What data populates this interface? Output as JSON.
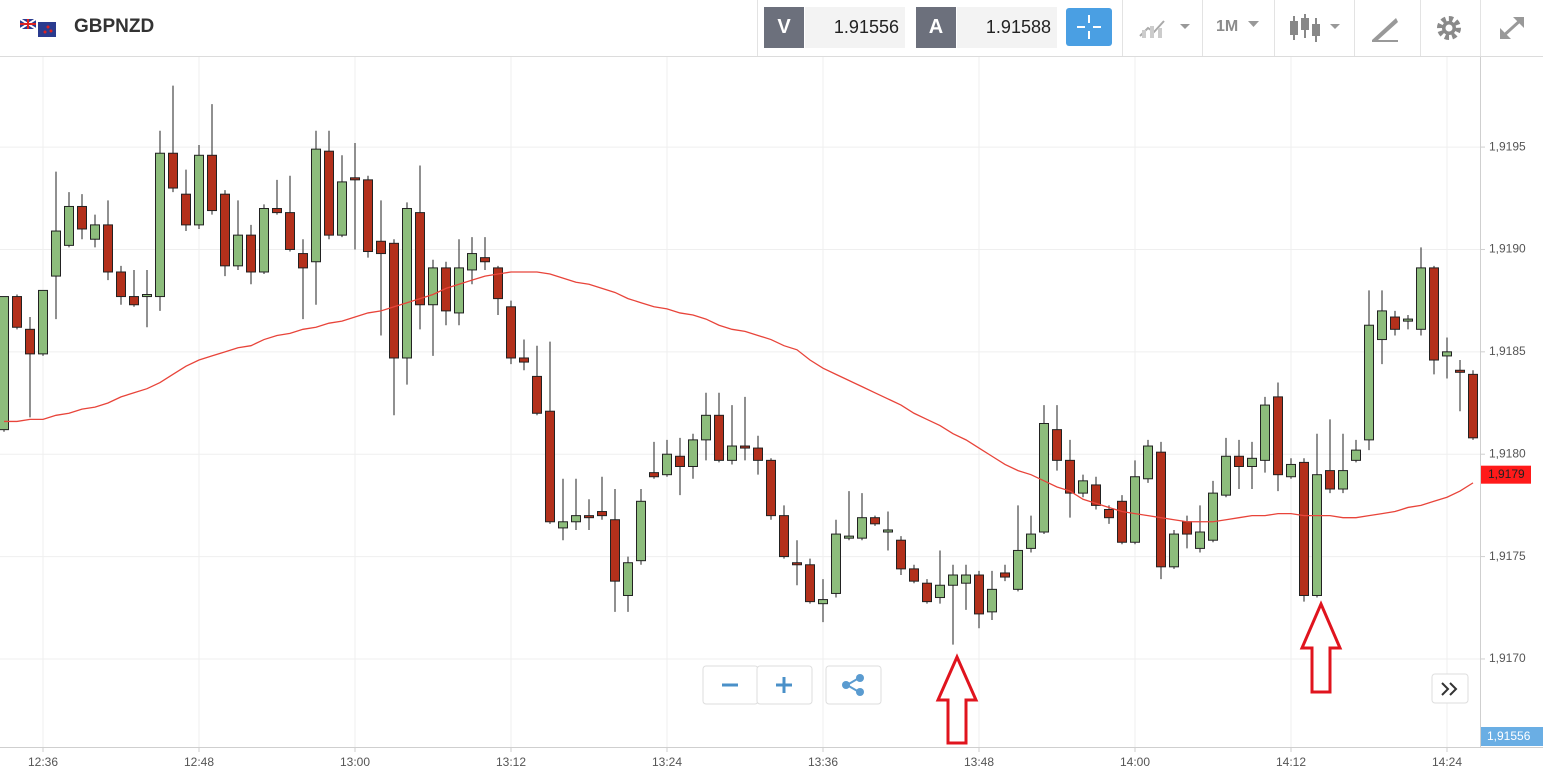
{
  "header": {
    "symbol": "GBPNZD",
    "bid_label": "V",
    "bid": "1.91556",
    "ask_label": "A",
    "ask": "1.91588",
    "timeframe": "1M"
  },
  "chart_data": {
    "type": "candlestick",
    "categories": [
      null,
      null,
      null,
      "12:36",
      null,
      null,
      null,
      null,
      null,
      null,
      null,
      null,
      null,
      null,
      null,
      "12:48",
      null,
      null,
      null,
      null,
      null,
      null,
      null,
      null,
      null,
      null,
      null,
      "13:00",
      null,
      null,
      null,
      null,
      null,
      null,
      null,
      null,
      null,
      null,
      null,
      "13:12",
      null,
      null,
      null,
      null,
      null,
      null,
      null,
      null,
      null,
      null,
      null,
      "13:24",
      null,
      null,
      null,
      null,
      null,
      null,
      null,
      null,
      null,
      null,
      null,
      "13:36",
      null,
      null,
      null,
      null,
      null,
      null,
      null,
      null,
      null,
      null,
      null,
      "13:48",
      null,
      null,
      null,
      null,
      null,
      null,
      null,
      null,
      null,
      null,
      null,
      "14:00",
      null,
      null,
      null,
      null,
      null,
      null,
      null,
      null,
      null,
      null,
      null,
      "14:12",
      null,
      null,
      null,
      null,
      null,
      null,
      null,
      null,
      null,
      null,
      null,
      "14:24",
      null,
      null
    ],
    "open": [
      1.91812,
      1.91877,
      1.91861,
      1.91849,
      1.91887,
      1.91902,
      1.91921,
      1.91905,
      1.91912,
      1.91889,
      1.91877,
      1.91877,
      1.91877,
      1.91947,
      1.91927,
      1.91912,
      1.91946,
      1.91927,
      1.91892,
      1.91907,
      1.91889,
      1.9192,
      1.91918,
      1.91898,
      1.91894,
      1.91948,
      1.91907,
      1.91935,
      1.91934,
      1.91904,
      1.91903,
      1.91847,
      1.91918,
      1.91873,
      1.91891,
      1.91869,
      1.9189,
      1.91896,
      1.91891,
      1.91872,
      1.91847,
      1.91838,
      1.91821,
      1.91764,
      1.91767,
      1.9177,
      1.91772,
      1.91768,
      1.91731,
      1.91748,
      1.91791,
      1.9179,
      1.91799,
      1.91794,
      1.91807,
      1.91819,
      1.91797,
      1.91804,
      1.91803,
      1.91797,
      1.9177,
      1.91747,
      1.91746,
      1.91727,
      1.91732,
      1.91759,
      1.91759,
      1.91769,
      1.91762,
      1.91758,
      1.91744,
      1.91737,
      1.9173,
      1.91736,
      1.91737,
      1.91741,
      1.91723,
      1.91742,
      1.91734,
      1.91754,
      1.91762,
      1.91812,
      1.91797,
      1.91781,
      1.91785,
      1.91773,
      1.91777,
      1.91757,
      1.91788,
      1.91801,
      1.91745,
      1.91767,
      1.91754,
      1.91758,
      1.9178,
      1.91799,
      1.91794,
      1.91797,
      1.91828,
      1.91789,
      1.91796,
      1.91731,
      1.91792,
      1.91783,
      1.91797,
      1.91807,
      1.91856,
      1.91867,
      1.91865,
      1.91861,
      1.91891,
      1.91848,
      1.91841,
      1.91839
    ],
    "high": [
      1.91877,
      1.91878,
      1.91867,
      1.9188,
      1.91938,
      1.91928,
      1.91927,
      1.91917,
      1.91924,
      1.91892,
      1.9189,
      1.9189,
      1.91958,
      1.9198,
      1.91939,
      1.91951,
      1.91971,
      1.91929,
      1.91924,
      1.91912,
      1.91922,
      1.91934,
      1.91936,
      1.91905,
      1.91958,
      1.91958,
      1.91946,
      1.91952,
      1.91936,
      1.91924,
      1.91905,
      1.91923,
      1.91941,
      1.91895,
      1.91894,
      1.91905,
      1.91906,
      1.91906,
      1.91892,
      1.91875,
      1.91856,
      1.91853,
      1.91855,
      1.91788,
      1.91788,
      1.91778,
      1.91789,
      1.91783,
      1.9175,
      1.91783,
      1.91806,
      1.91807,
      1.91808,
      1.9181,
      1.9183,
      1.9183,
      1.91824,
      1.91828,
      1.91809,
      1.91798,
      1.91775,
      1.91758,
      1.91749,
      1.91739,
      1.91768,
      1.91782,
      1.91781,
      1.9177,
      1.91772,
      1.9176,
      1.91746,
      1.91739,
      1.91753,
      1.91746,
      1.91746,
      1.91743,
      1.91743,
      1.91746,
      1.91775,
      1.9177,
      1.91824,
      1.91824,
      1.91807,
      1.9179,
      1.91789,
      1.91775,
      1.9178,
      1.91797,
      1.91807,
      1.91806,
      1.91763,
      1.9177,
      1.91775,
      1.91787,
      1.91808,
      1.91807,
      1.91806,
      1.91828,
      1.91835,
      1.91798,
      1.91798,
      1.9181,
      1.91817,
      1.9181,
      1.91807,
      1.9188,
      1.9188,
      1.9187,
      1.91868,
      1.91901,
      1.91892,
      1.91857,
      1.91846,
      1.91841
    ],
    "low": [
      1.91811,
      1.91861,
      1.91818,
      1.91848,
      1.91866,
      1.91901,
      1.91905,
      1.91901,
      1.91885,
      1.91873,
      1.91872,
      1.91862,
      1.9187,
      1.91928,
      1.91909,
      1.9191,
      1.91917,
      1.91887,
      1.9189,
      1.91883,
      1.91888,
      1.91917,
      1.91899,
      1.91866,
      1.91873,
      1.91905,
      1.91906,
      1.919,
      1.91896,
      1.91858,
      1.91819,
      1.91834,
      1.91861,
      1.91848,
      1.91863,
      1.91863,
      1.91883,
      1.9189,
      1.91868,
      1.91844,
      1.91841,
      1.91819,
      1.91766,
      1.91758,
      1.91763,
      1.91763,
      1.91768,
      1.91723,
      1.91723,
      1.91746,
      1.91788,
      1.91789,
      1.9178,
      1.91788,
      1.91797,
      1.91796,
      1.91795,
      1.91797,
      1.9179,
      1.91768,
      1.91749,
      1.91736,
      1.91727,
      1.91718,
      1.9173,
      1.91758,
      1.91758,
      1.91765,
      1.91753,
      1.91741,
      1.91737,
      1.91727,
      1.91727,
      1.91707,
      1.91724,
      1.91715,
      1.91719,
      1.91738,
      1.91733,
      1.91752,
      1.91761,
      1.91792,
      1.91769,
      1.91779,
      1.91773,
      1.91766,
      1.91756,
      1.91756,
      1.91786,
      1.91739,
      1.91744,
      1.91754,
      1.91752,
      1.91757,
      1.91779,
      1.91783,
      1.91783,
      1.91791,
      1.91782,
      1.91788,
      1.91728,
      1.9173,
      1.91781,
      1.91781,
      1.91796,
      1.91802,
      1.91844,
      1.91858,
      1.91861,
      1.91858,
      1.91839,
      1.91837,
      1.91821,
      1.91807
    ],
    "close": [
      1.91877,
      1.91862,
      1.91849,
      1.9188,
      1.91909,
      1.91921,
      1.9191,
      1.91912,
      1.91889,
      1.91877,
      1.91873,
      1.91878,
      1.91947,
      1.9193,
      1.91912,
      1.91946,
      1.91919,
      1.91892,
      1.91907,
      1.91889,
      1.9192,
      1.91918,
      1.919,
      1.91891,
      1.91949,
      1.91907,
      1.91933,
      1.91934,
      1.91899,
      1.91898,
      1.91847,
      1.9192,
      1.91873,
      1.91891,
      1.9187,
      1.91891,
      1.91898,
      1.91894,
      1.91876,
      1.91847,
      1.91845,
      1.9182,
      1.91767,
      1.91767,
      1.9177,
      1.91769,
      1.9177,
      1.91738,
      1.91747,
      1.91777,
      1.91789,
      1.918,
      1.91794,
      1.91807,
      1.91819,
      1.91797,
      1.91804,
      1.91803,
      1.91797,
      1.9177,
      1.9175,
      1.91746,
      1.91728,
      1.91729,
      1.91761,
      1.9176,
      1.91769,
      1.91766,
      1.91763,
      1.91744,
      1.91738,
      1.91728,
      1.91736,
      1.91741,
      1.91741,
      1.91722,
      1.91734,
      1.9174,
      1.91753,
      1.91761,
      1.91815,
      1.91797,
      1.91781,
      1.91787,
      1.91775,
      1.91769,
      1.91757,
      1.91789,
      1.91804,
      1.91745,
      1.91761,
      1.91761,
      1.91762,
      1.91781,
      1.91799,
      1.91794,
      1.91798,
      1.91824,
      1.9179,
      1.91795,
      1.91731,
      1.9179,
      1.91783,
      1.91792,
      1.91802,
      1.91863,
      1.9187,
      1.91861,
      1.91866,
      1.91891,
      1.91846,
      1.9185,
      1.9184,
      1.91808
    ],
    "up_color": "#8dbd7c",
    "down_color": "#b3301b",
    "moving_average": {
      "color": "#e8443a",
      "values": [
        1.91816,
        1.91816,
        1.91817,
        1.91817,
        1.91819,
        1.9182,
        1.91822,
        1.91823,
        1.91825,
        1.91828,
        1.9183,
        1.91832,
        1.91835,
        1.91839,
        1.91843,
        1.91846,
        1.91848,
        1.9185,
        1.91852,
        1.91853,
        1.91856,
        1.91858,
        1.91859,
        1.91861,
        1.91862,
        1.91864,
        1.91865,
        1.91867,
        1.91869,
        1.9187,
        1.91872,
        1.91874,
        1.91876,
        1.91878,
        1.91881,
        1.91883,
        1.91885,
        1.91887,
        1.91888,
        1.91889,
        1.91889,
        1.91889,
        1.91888,
        1.91886,
        1.91884,
        1.91883,
        1.91881,
        1.91879,
        1.91876,
        1.91874,
        1.91872,
        1.91871,
        1.91869,
        1.91868,
        1.91866,
        1.91863,
        1.91861,
        1.9186,
        1.91858,
        1.91856,
        1.91853,
        1.91851,
        1.91846,
        1.91842,
        1.91839,
        1.91836,
        1.91833,
        1.9183,
        1.91827,
        1.91824,
        1.9182,
        1.91817,
        1.91814,
        1.9181,
        1.91807,
        1.91803,
        1.91799,
        1.91795,
        1.91792,
        1.9179,
        1.91787,
        1.91784,
        1.91782,
        1.91778,
        1.91776,
        1.91774,
        1.91772,
        1.91771,
        1.9177,
        1.91769,
        1.91768,
        1.91767,
        1.91767,
        1.91767,
        1.91768,
        1.91769,
        1.9177,
        1.9177,
        1.91771,
        1.91771,
        1.9177,
        1.9177,
        1.9177,
        1.91769,
        1.91769,
        1.9177,
        1.91771,
        1.91772,
        1.91774,
        1.91775,
        1.91777,
        1.91779,
        1.91782,
        1.91786
      ],
      "last_label": {
        "value": 1.9179,
        "label": "1,9179"
      }
    },
    "ylim": [
      1.91657,
      1.91994
    ],
    "yticks": [
      {
        "value": 1.917,
        "label": "1,9170"
      },
      {
        "value": 1.9175,
        "label": "1,9175"
      },
      {
        "value": 1.918,
        "label": "1,9180"
      },
      {
        "value": 1.9185,
        "label": "1,9185"
      },
      {
        "value": 1.919,
        "label": "1,9190"
      },
      {
        "value": 1.9195,
        "label": "1,9195"
      }
    ],
    "grid": true,
    "price_badge": "1,91556"
  }
}
